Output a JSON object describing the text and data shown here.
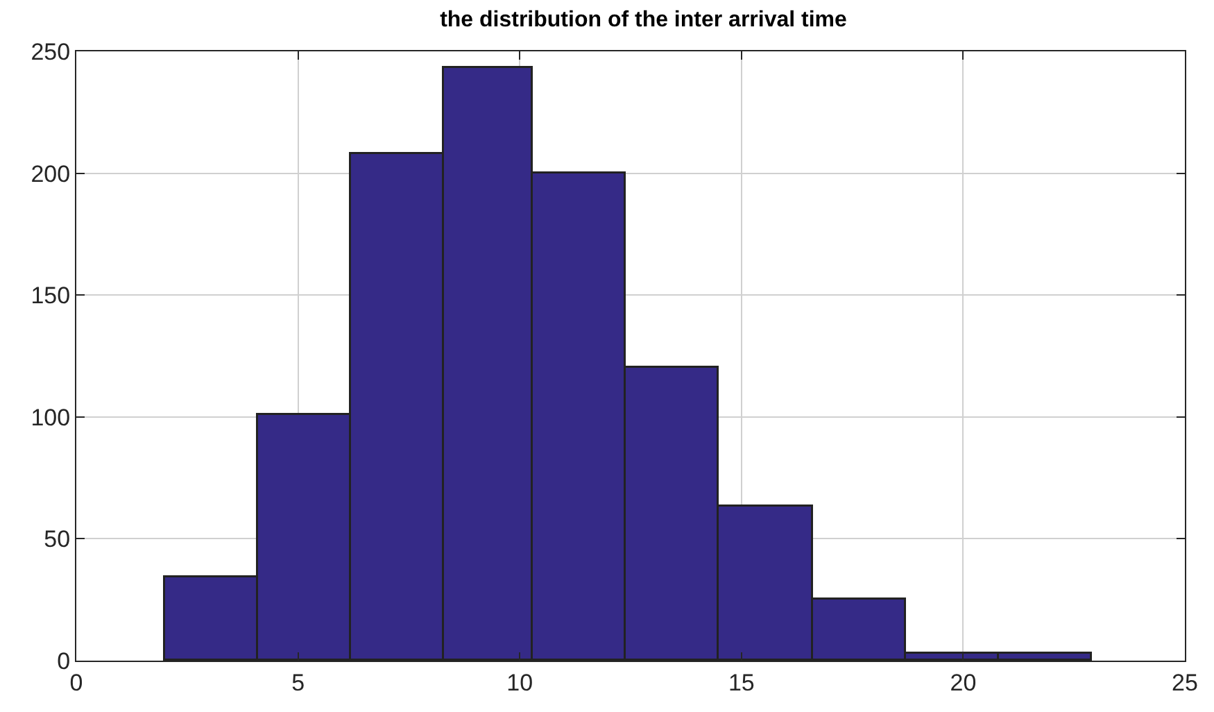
{
  "chart_data": {
    "type": "histogram",
    "title": "the distribution of the inter arrival time",
    "bins": [
      2.0,
      4.1,
      6.2,
      8.3,
      10.3,
      12.4,
      14.5,
      16.6,
      18.7,
      20.8,
      22.9
    ],
    "values": [
      34,
      101,
      208,
      243,
      200,
      120,
      63,
      25,
      3,
      3
    ],
    "color": "#352a87",
    "xlim": [
      0,
      25
    ],
    "xticks": [
      0,
      5,
      10,
      15,
      20,
      25
    ],
    "ylim": [
      0,
      250
    ],
    "yticks": [
      0,
      50,
      100,
      150,
      200,
      250
    ],
    "grid": true
  }
}
